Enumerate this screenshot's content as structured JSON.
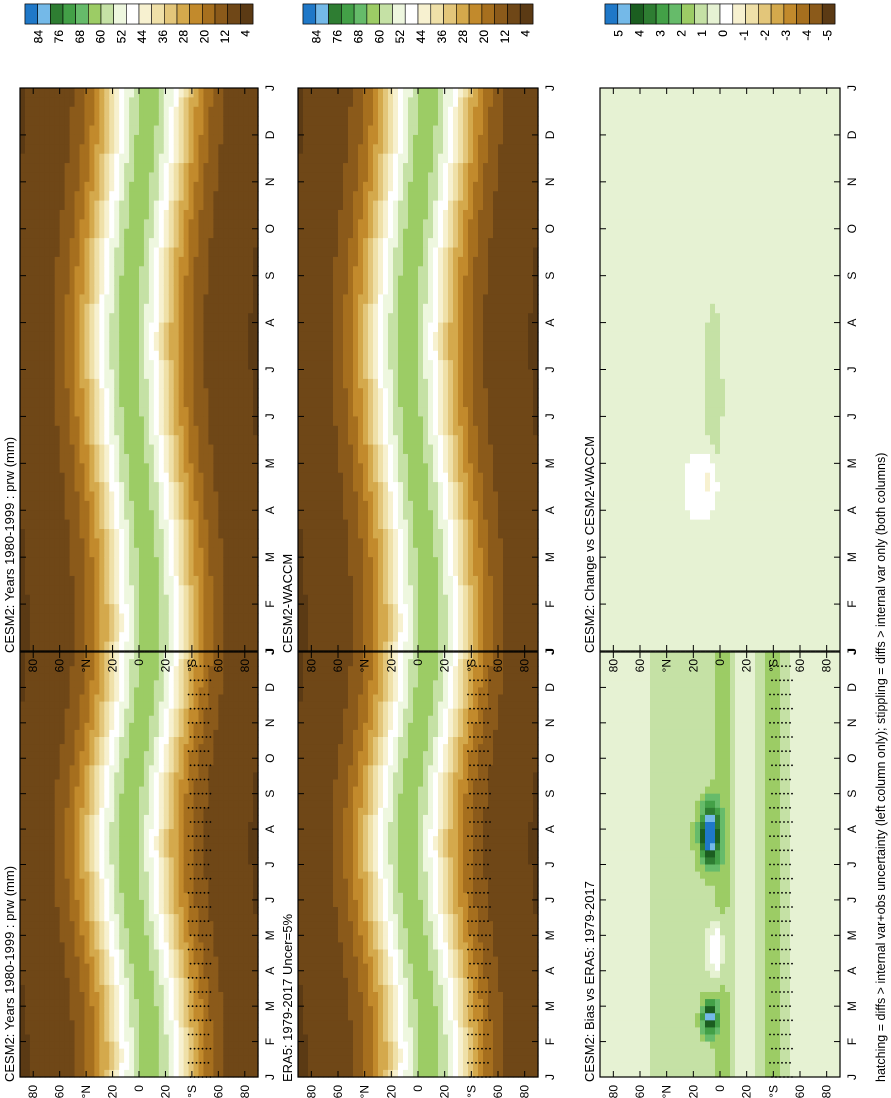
{
  "footer_note": "hatching = diffs > internal var+obs uncertainty (left column only); stippling = diffs > internal var only (both columns)",
  "chart_data": [
    {
      "type": "heatmap",
      "title": "CESM2: Years 1980-1999 : prw (mm)",
      "x_ticks": [
        "J",
        "F",
        "M",
        "A",
        "M",
        "J",
        "J",
        "A",
        "S",
        "O",
        "N",
        "D",
        "J"
      ],
      "y_ticks": [
        "80",
        "60",
        "°N",
        "20",
        "0",
        "20",
        "°S",
        "60",
        "80"
      ],
      "ylim": [
        -90,
        90
      ],
      "colorbar": {
        "labels": [
          "84",
          "76",
          "68",
          "60",
          "52",
          "44",
          "36",
          "28",
          "20",
          "12",
          "4"
        ],
        "colors": [
          "#1f78c8",
          "#74b9e8",
          "#2e7d32",
          "#43a047",
          "#66bb6a",
          "#9ccc65",
          "#c5e1a5",
          "#eef7df",
          "#ffffff",
          "#f7f1d0",
          "#efe0a8",
          "#e3c67a",
          "#d4a94c",
          "#c28a2c",
          "#a66f1e",
          "#8b5a1a",
          "#6f4717",
          "#5b3a14"
        ]
      },
      "stippling": true,
      "field": "prw"
    },
    {
      "type": "heatmap",
      "title": "CESM2: Years 1980-1999 : prw (mm)",
      "x_ticks": [
        "J",
        "F",
        "M",
        "A",
        "M",
        "J",
        "J",
        "A",
        "S",
        "O",
        "N",
        "D",
        "J"
      ],
      "y_ticks": [
        "80",
        "60",
        "°N",
        "20",
        "0",
        "20",
        "°S",
        "60",
        "80"
      ],
      "ylim": [
        -90,
        90
      ],
      "colorbar": {
        "labels": [
          "84",
          "76",
          "68",
          "60",
          "52",
          "44",
          "36",
          "28",
          "20",
          "12",
          "4"
        ],
        "colors": [
          "#1f78c8",
          "#74b9e8",
          "#2e7d32",
          "#43a047",
          "#66bb6a",
          "#9ccc65",
          "#c5e1a5",
          "#eef7df",
          "#ffffff",
          "#f7f1d0",
          "#efe0a8",
          "#e3c67a",
          "#d4a94c",
          "#c28a2c",
          "#a66f1e",
          "#8b5a1a",
          "#6f4717",
          "#5b3a14"
        ]
      },
      "stippling": false,
      "field": "prw"
    },
    {
      "type": "heatmap",
      "title": "ERA5: 1979-2017 Uncer=5%",
      "x_ticks": [
        "J",
        "F",
        "M",
        "A",
        "M",
        "J",
        "J",
        "A",
        "S",
        "O",
        "N",
        "D",
        "J"
      ],
      "y_ticks": [
        "80",
        "60",
        "°N",
        "20",
        "0",
        "20",
        "°S",
        "60",
        "80"
      ],
      "ylim": [
        -90,
        90
      ],
      "colorbar": {
        "labels": [
          "84",
          "76",
          "68",
          "60",
          "52",
          "44",
          "36",
          "28",
          "20",
          "12",
          "4"
        ],
        "colors": [
          "#1f78c8",
          "#74b9e8",
          "#2e7d32",
          "#43a047",
          "#66bb6a",
          "#9ccc65",
          "#c5e1a5",
          "#eef7df",
          "#ffffff",
          "#f7f1d0",
          "#efe0a8",
          "#e3c67a",
          "#d4a94c",
          "#c28a2c",
          "#a66f1e",
          "#8b5a1a",
          "#6f4717",
          "#5b3a14"
        ]
      },
      "stippling": true,
      "field": "prw"
    },
    {
      "type": "heatmap",
      "title": "CESM2-WACCM",
      "x_ticks": [
        "J",
        "F",
        "M",
        "A",
        "M",
        "J",
        "J",
        "A",
        "S",
        "O",
        "N",
        "D",
        "J"
      ],
      "y_ticks": [
        "80",
        "60",
        "°N",
        "20",
        "0",
        "20",
        "°S",
        "60",
        "80"
      ],
      "ylim": [
        -90,
        90
      ],
      "colorbar": {
        "labels": [
          "84",
          "76",
          "68",
          "60",
          "52",
          "44",
          "36",
          "28",
          "20",
          "12",
          "4"
        ],
        "colors": [
          "#1f78c8",
          "#74b9e8",
          "#2e7d32",
          "#43a047",
          "#66bb6a",
          "#9ccc65",
          "#c5e1a5",
          "#eef7df",
          "#ffffff",
          "#f7f1d0",
          "#efe0a8",
          "#e3c67a",
          "#d4a94c",
          "#c28a2c",
          "#a66f1e",
          "#8b5a1a",
          "#6f4717",
          "#5b3a14"
        ]
      },
      "stippling": false,
      "field": "prw"
    },
    {
      "type": "heatmap",
      "title": "CESM2: Bias vs ERA5: 1979-2017",
      "x_ticks": [
        "J",
        "F",
        "M",
        "A",
        "M",
        "J",
        "J",
        "A",
        "S",
        "O",
        "N",
        "D",
        "J"
      ],
      "y_ticks": [
        "80",
        "60",
        "°N",
        "20",
        "0",
        "20",
        "°S",
        "60",
        "80"
      ],
      "ylim": [
        -90,
        90
      ],
      "colorbar": {
        "labels": [
          "5",
          "4",
          "3",
          "2",
          "1",
          "0",
          "-1",
          "-2",
          "-3",
          "-4",
          "-5"
        ],
        "colors": [
          "#1f78c8",
          "#74b9e8",
          "#1b5e20",
          "#2e7d32",
          "#43a047",
          "#66bb6a",
          "#9ccc65",
          "#c5e1a5",
          "#e6f2d3",
          "#ffffff",
          "#f7f1d0",
          "#efe0a8",
          "#e3c67a",
          "#d4a94c",
          "#c28a2c",
          "#a66f1e",
          "#8b5a1a",
          "#5b3a14"
        ]
      },
      "stippling": true,
      "field": "bias"
    },
    {
      "type": "heatmap",
      "title": "CESM2: Change vs CESM2-WACCM",
      "x_ticks": [
        "J",
        "F",
        "M",
        "A",
        "M",
        "J",
        "J",
        "A",
        "S",
        "O",
        "N",
        "D",
        "J"
      ],
      "y_ticks": [
        "80",
        "60",
        "°N",
        "20",
        "0",
        "20",
        "°S",
        "60",
        "80"
      ],
      "ylim": [
        -90,
        90
      ],
      "colorbar": {
        "labels": [
          "5",
          "4",
          "3",
          "2",
          "1",
          "0",
          "-1",
          "-2",
          "-3",
          "-4",
          "-5"
        ],
        "colors": [
          "#1f78c8",
          "#74b9e8",
          "#1b5e20",
          "#2e7d32",
          "#43a047",
          "#66bb6a",
          "#9ccc65",
          "#c5e1a5",
          "#e6f2d3",
          "#ffffff",
          "#f7f1d0",
          "#efe0a8",
          "#e3c67a",
          "#d4a94c",
          "#c28a2c",
          "#a66f1e",
          "#8b5a1a",
          "#5b3a14"
        ]
      },
      "stippling": false,
      "field": "change"
    }
  ]
}
